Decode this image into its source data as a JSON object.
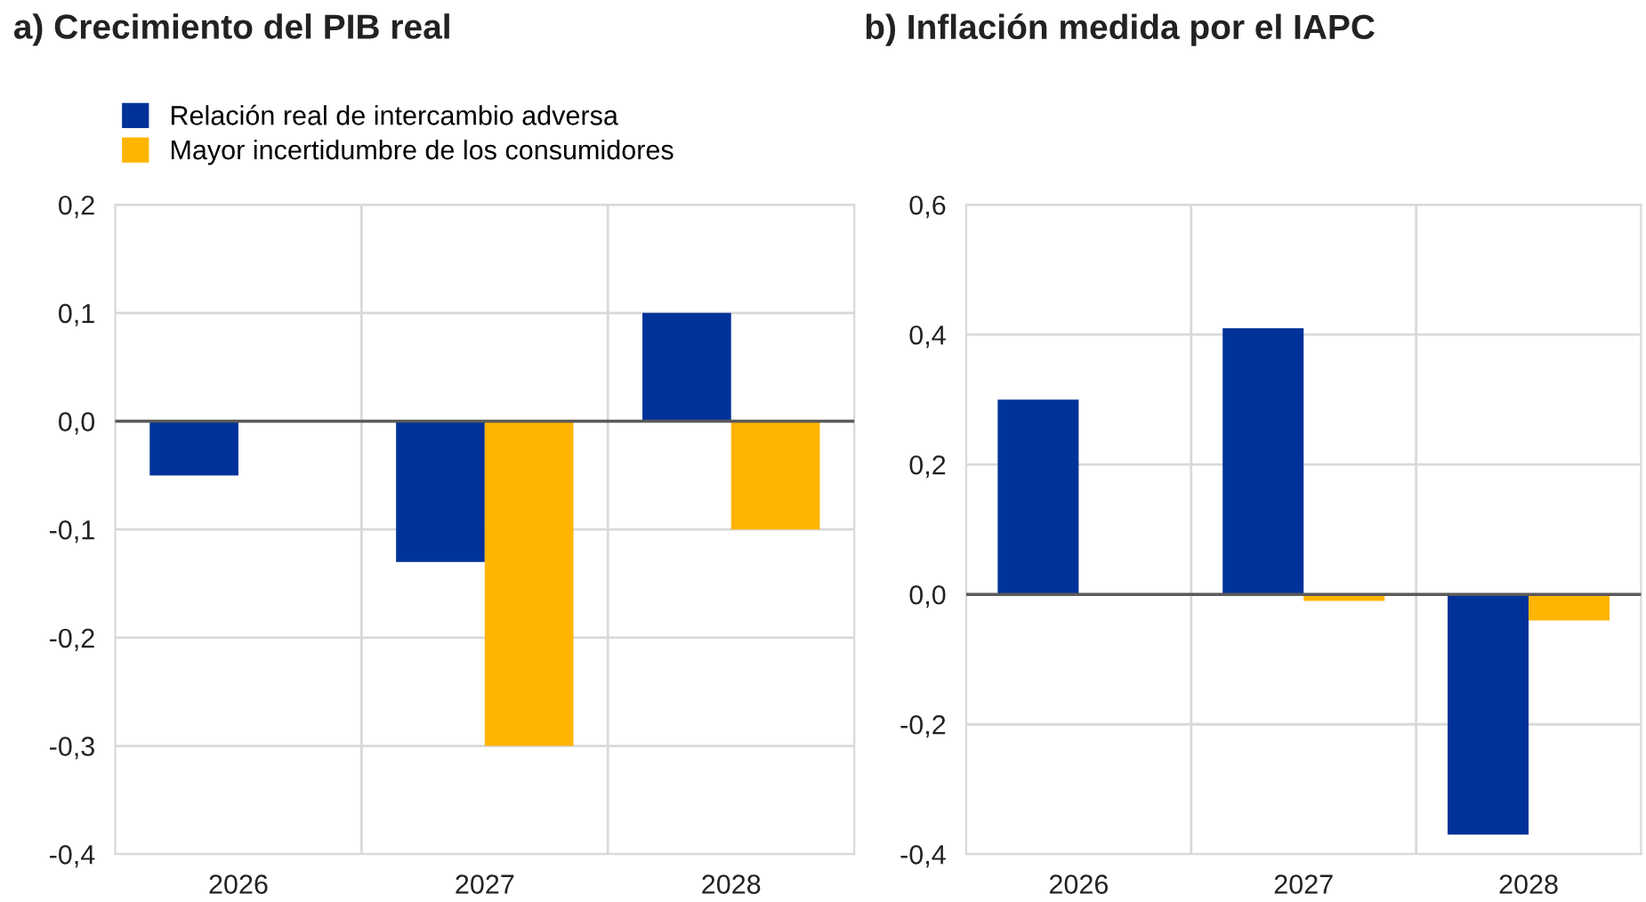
{
  "chart_data": [
    {
      "type": "bar",
      "title": "a) Crecimiento del PIB real",
      "categories": [
        "2026",
        "2027",
        "2028"
      ],
      "series": [
        {
          "name": "Relación real de intercambio adversa",
          "color": "#003299",
          "values": [
            -0.05,
            -0.13,
            0.1
          ]
        },
        {
          "name": "Mayor incertidumbre de los consumidores",
          "color": "#ffb400",
          "values": [
            null,
            -0.3,
            -0.1
          ]
        }
      ],
      "ylim": [
        -0.4,
        0.2
      ],
      "yticks": [
        {
          "value": -0.4,
          "label": "-0,4"
        },
        {
          "value": -0.3,
          "label": "-0,3"
        },
        {
          "value": -0.2,
          "label": "-0,2"
        },
        {
          "value": -0.1,
          "label": "-0,1"
        },
        {
          "value": 0,
          "label": "0,0"
        },
        {
          "value": 0.1,
          "label": "0,1"
        },
        {
          "value": 0.2,
          "label": "0,2"
        }
      ],
      "ref_lines": [
        {
          "axis": "y",
          "value": 0,
          "label": null,
          "color": "#5a5a5a"
        }
      ],
      "grid": true,
      "legend": "top left"
    },
    {
      "type": "bar",
      "title": "b) Inflación medida por el IAPC",
      "categories": [
        "2026",
        "2027",
        "2028"
      ],
      "series": [
        {
          "color": "#003299",
          "values": [
            0.3,
            0.41,
            -0.37
          ]
        },
        {
          "color": "#ffb400",
          "values": [
            null,
            -0.01,
            -0.04
          ]
        }
      ],
      "ylim": [
        -0.4,
        0.6
      ],
      "yticks": [
        {
          "value": -0.4,
          "label": "-0,4"
        },
        {
          "value": -0.2,
          "label": "-0,2"
        },
        {
          "value": 0,
          "label": "0,0"
        },
        {
          "value": 0.2,
          "label": "0,2"
        },
        {
          "value": 0.4,
          "label": "0,4"
        },
        {
          "value": 0.6,
          "label": "0,6"
        }
      ],
      "ref_lines": [
        {
          "axis": "y",
          "value": 0,
          "label": null,
          "color": "#5a5a5a"
        }
      ],
      "grid": true
    }
  ]
}
